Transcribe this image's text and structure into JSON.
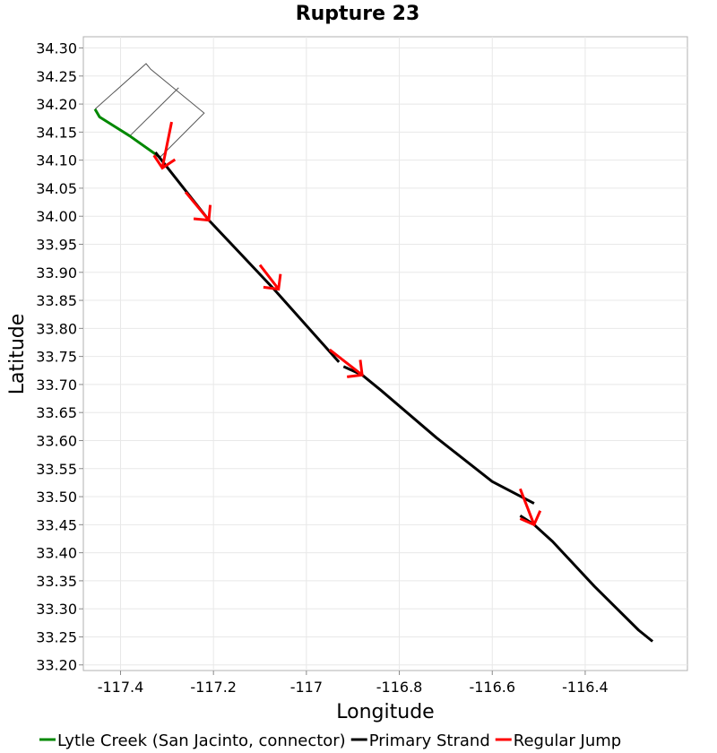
{
  "chart_data": {
    "type": "line",
    "title": "Rupture 23",
    "xlabel": "Longitude",
    "ylabel": "Latitude",
    "xlim": [
      -117.48,
      -116.18
    ],
    "ylim": [
      33.19,
      34.32
    ],
    "grid": true,
    "legend_placement": "bottom",
    "x_ticks": [
      "-117.4",
      "-117.2",
      "-117",
      "-116.8",
      "-116.6",
      "-116.4"
    ],
    "x_tick_values": [
      -117.4,
      -117.2,
      -117.0,
      -116.8,
      -116.6,
      -116.4
    ],
    "y_ticks": [
      "34.30",
      "34.25",
      "34.20",
      "34.15",
      "34.10",
      "34.05",
      "34.00",
      "33.95",
      "33.90",
      "33.85",
      "33.80",
      "33.75",
      "33.70",
      "33.65",
      "33.60",
      "33.55",
      "33.50",
      "33.45",
      "33.40",
      "33.35",
      "33.30",
      "33.25",
      "33.20"
    ],
    "y_tick_values": [
      34.3,
      34.25,
      34.2,
      34.15,
      34.1,
      34.05,
      34.0,
      33.95,
      33.9,
      33.85,
      33.8,
      33.75,
      33.7,
      33.65,
      33.6,
      33.55,
      33.5,
      33.45,
      33.4,
      33.35,
      33.3,
      33.25,
      33.2
    ],
    "series": [
      {
        "name": "Lytle Creek (San Jacinto, connector)",
        "color": "#008800",
        "width": 3,
        "lines": [
          [
            [
              -117.455,
              34.191
            ],
            [
              -117.445,
              34.177
            ],
            [
              -117.38,
              34.143
            ],
            [
              -117.315,
              34.105
            ]
          ]
        ]
      },
      {
        "name": "Primary Strand",
        "color": "#000000",
        "width": 3,
        "lines": [
          [
            [
              -117.325,
              34.114
            ],
            [
              -117.21,
              33.993
            ],
            [
              -117.07,
              33.87
            ],
            [
              -116.93,
              33.74
            ]
          ],
          [
            [
              -116.92,
              33.732
            ],
            [
              -116.88,
              33.717
            ],
            [
              -116.84,
              33.69
            ],
            [
              -116.72,
              33.605
            ],
            [
              -116.6,
              33.527
            ],
            [
              -116.51,
              33.488
            ]
          ],
          [
            [
              -116.54,
              33.466
            ],
            [
              -116.51,
              33.45
            ],
            [
              -116.47,
              33.42
            ],
            [
              -116.38,
              33.34
            ],
            [
              -116.285,
              33.262
            ],
            [
              -116.255,
              33.242
            ]
          ]
        ]
      },
      {
        "name": "Regular Jump",
        "color": "#ff0000",
        "width": 3,
        "lines": [
          [
            [
              -117.29,
              34.168
            ],
            [
              -117.31,
              34.086
            ]
          ],
          [
            [
              -117.26,
              34.043
            ],
            [
              -117.21,
              33.993
            ]
          ],
          [
            [
              -117.1,
              33.913
            ],
            [
              -117.06,
              33.87
            ]
          ],
          [
            [
              -116.95,
              33.762
            ],
            [
              -116.88,
              33.717
            ]
          ],
          [
            [
              -116.54,
              33.514
            ],
            [
              -116.51,
              33.45
            ]
          ]
        ]
      }
    ],
    "outlines": [
      [
        [
          -117.455,
          34.191
        ],
        [
          -117.345,
          34.272
        ],
        [
          -117.335,
          34.262
        ],
        [
          -117.22,
          34.184
        ],
        [
          -117.315,
          34.105
        ]
      ],
      [
        [
          -117.275,
          34.229
        ],
        [
          -117.38,
          34.143
        ]
      ]
    ],
    "outline_color": "#555555"
  }
}
